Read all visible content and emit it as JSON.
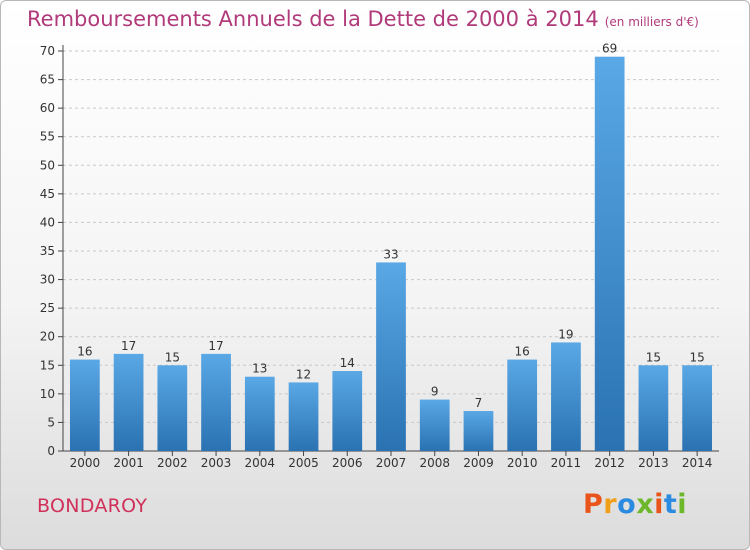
{
  "header": {
    "title": "Remboursements Annuels de la Dette de 2000 à 2014",
    "subtitle": "(en milliers d'€)"
  },
  "footer": {
    "commune": "BONDAROY",
    "logo": "Proxiti"
  },
  "logo_colors": [
    "#e8541a",
    "#f0a018",
    "#2a8be0",
    "#6cb82a",
    "#e8541a",
    "#2a8be0",
    "#6cb82a"
  ],
  "colors": {
    "bar_top": "#5aa8e6",
    "bar_bottom": "#2a72b2",
    "axis": "#444444",
    "grid": "#c8c8c8",
    "title": "#b03a7a",
    "commune": "#d0305a"
  },
  "chart_data": {
    "type": "bar",
    "title": "Remboursements Annuels de la Dette de 2000 à 2014",
    "xlabel": "",
    "ylabel": "",
    "categories": [
      "2000",
      "2001",
      "2002",
      "2003",
      "2004",
      "2005",
      "2006",
      "2007",
      "2008",
      "2009",
      "2010",
      "2011",
      "2012",
      "2013",
      "2014"
    ],
    "values": [
      16,
      17,
      15,
      17,
      13,
      12,
      14,
      33,
      9,
      7,
      16,
      19,
      69,
      15,
      15
    ],
    "ylim": [
      0,
      70
    ],
    "yticks": [
      0,
      5,
      10,
      15,
      20,
      25,
      30,
      35,
      40,
      45,
      50,
      55,
      60,
      65,
      70
    ],
    "grid": true,
    "data_labels": true
  }
}
